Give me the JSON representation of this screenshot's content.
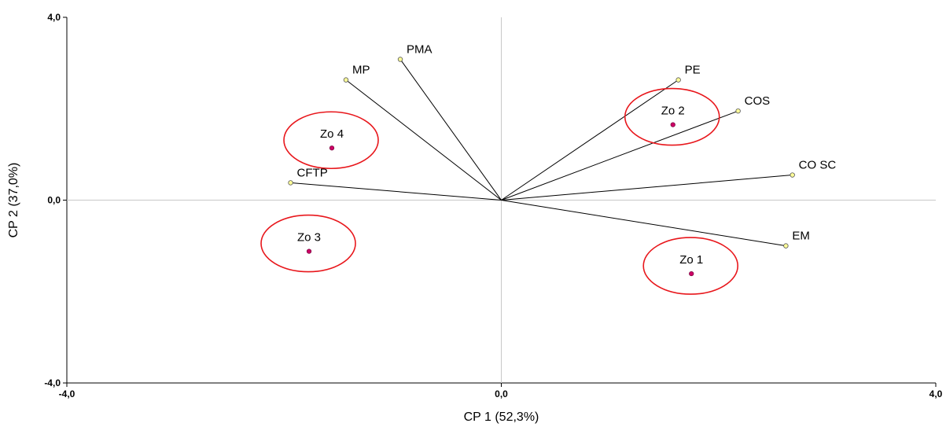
{
  "chart_data": {
    "type": "scatter",
    "title": "",
    "xlabel": "CP 1 (52,3%)",
    "ylabel": "CP 2 (37,0%)",
    "xlim": [
      -4.0,
      4.0
    ],
    "ylim": [
      -4.0,
      4.0
    ],
    "x_ticks": [
      "-4,0",
      "0,0",
      "4,0"
    ],
    "y_ticks": [
      "4,0",
      "0,0",
      "-4,0"
    ],
    "grid": false,
    "reference_lines": "x=0 and y=0",
    "colors": {
      "variable_point": "#ffff99",
      "observation_point": "#cc0066",
      "highlight_ellipse": "#e8161b",
      "reference_line": "#c8c8c8",
      "loading_line": "#000000"
    },
    "variables": [
      {
        "label": "PMA",
        "x": -0.93,
        "y": 3.08
      },
      {
        "label": "MP",
        "x": -1.43,
        "y": 2.63
      },
      {
        "label": "CFTP",
        "x": -1.94,
        "y": 0.38
      },
      {
        "label": "PE",
        "x": 1.63,
        "y": 2.63
      },
      {
        "label": "COS",
        "x": 2.18,
        "y": 1.95
      },
      {
        "label": "CO SC",
        "x": 2.68,
        "y": 0.55
      },
      {
        "label": "EM",
        "x": 2.62,
        "y": -1.0
      }
    ],
    "observations": [
      {
        "label": "Zo 4",
        "x": -1.56,
        "y": 1.14
      },
      {
        "label": "Zo 3",
        "x": -1.77,
        "y": -1.12
      },
      {
        "label": "Zo 2",
        "x": 1.58,
        "y": 1.65
      },
      {
        "label": "Zo 1",
        "x": 1.75,
        "y": -1.61
      }
    ]
  }
}
